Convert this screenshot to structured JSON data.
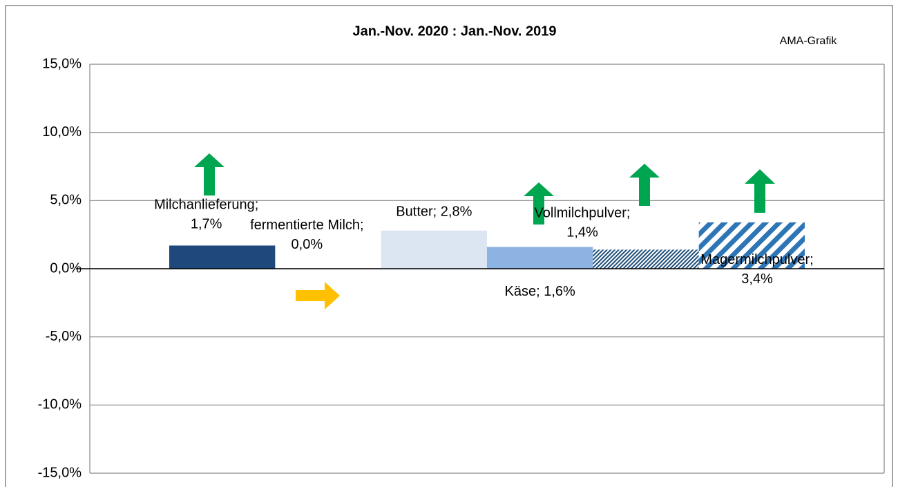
{
  "chart_data": {
    "type": "bar",
    "title": "Jan.-Nov. 2020 : Jan.-Nov. 2019",
    "annotation": "AMA-Grafik",
    "categories": [
      "Milchanlieferung",
      "fermentierte Milch",
      "Butter",
      "Käse",
      "Vollmilchpulver",
      "Magermilchpulver"
    ],
    "values": [
      1.7,
      0.0,
      2.8,
      1.6,
      1.4,
      3.4
    ],
    "value_labels": [
      "Milchanlieferung;\n1,7%",
      "fermentierte Milch;\n0,0%",
      "Butter; 2,8%",
      "Käse; 1,6%",
      "Vollmilchpulver;\n1,4%",
      "Magermilchpulver;\n3,4%"
    ],
    "colors": [
      "#1f497d",
      "#1f497d",
      "#dce6f2",
      "#8db3e2",
      "#1f4e79",
      "#2e75b6"
    ],
    "hatch": [
      null,
      null,
      null,
      null,
      "fine",
      "wide"
    ],
    "ylim": [
      -15,
      15
    ],
    "yticks": [
      {
        "value": -15,
        "label": "-15,0%"
      },
      {
        "value": -10,
        "label": "-10,0%"
      },
      {
        "value": -5,
        "label": "-5,0%"
      },
      {
        "value": 0,
        "label": "0,0%"
      },
      {
        "value": 5,
        "label": "5,0%"
      },
      {
        "value": 10,
        "label": "10,0%"
      },
      {
        "value": 15,
        "label": "15,0%"
      }
    ],
    "grid": true
  }
}
